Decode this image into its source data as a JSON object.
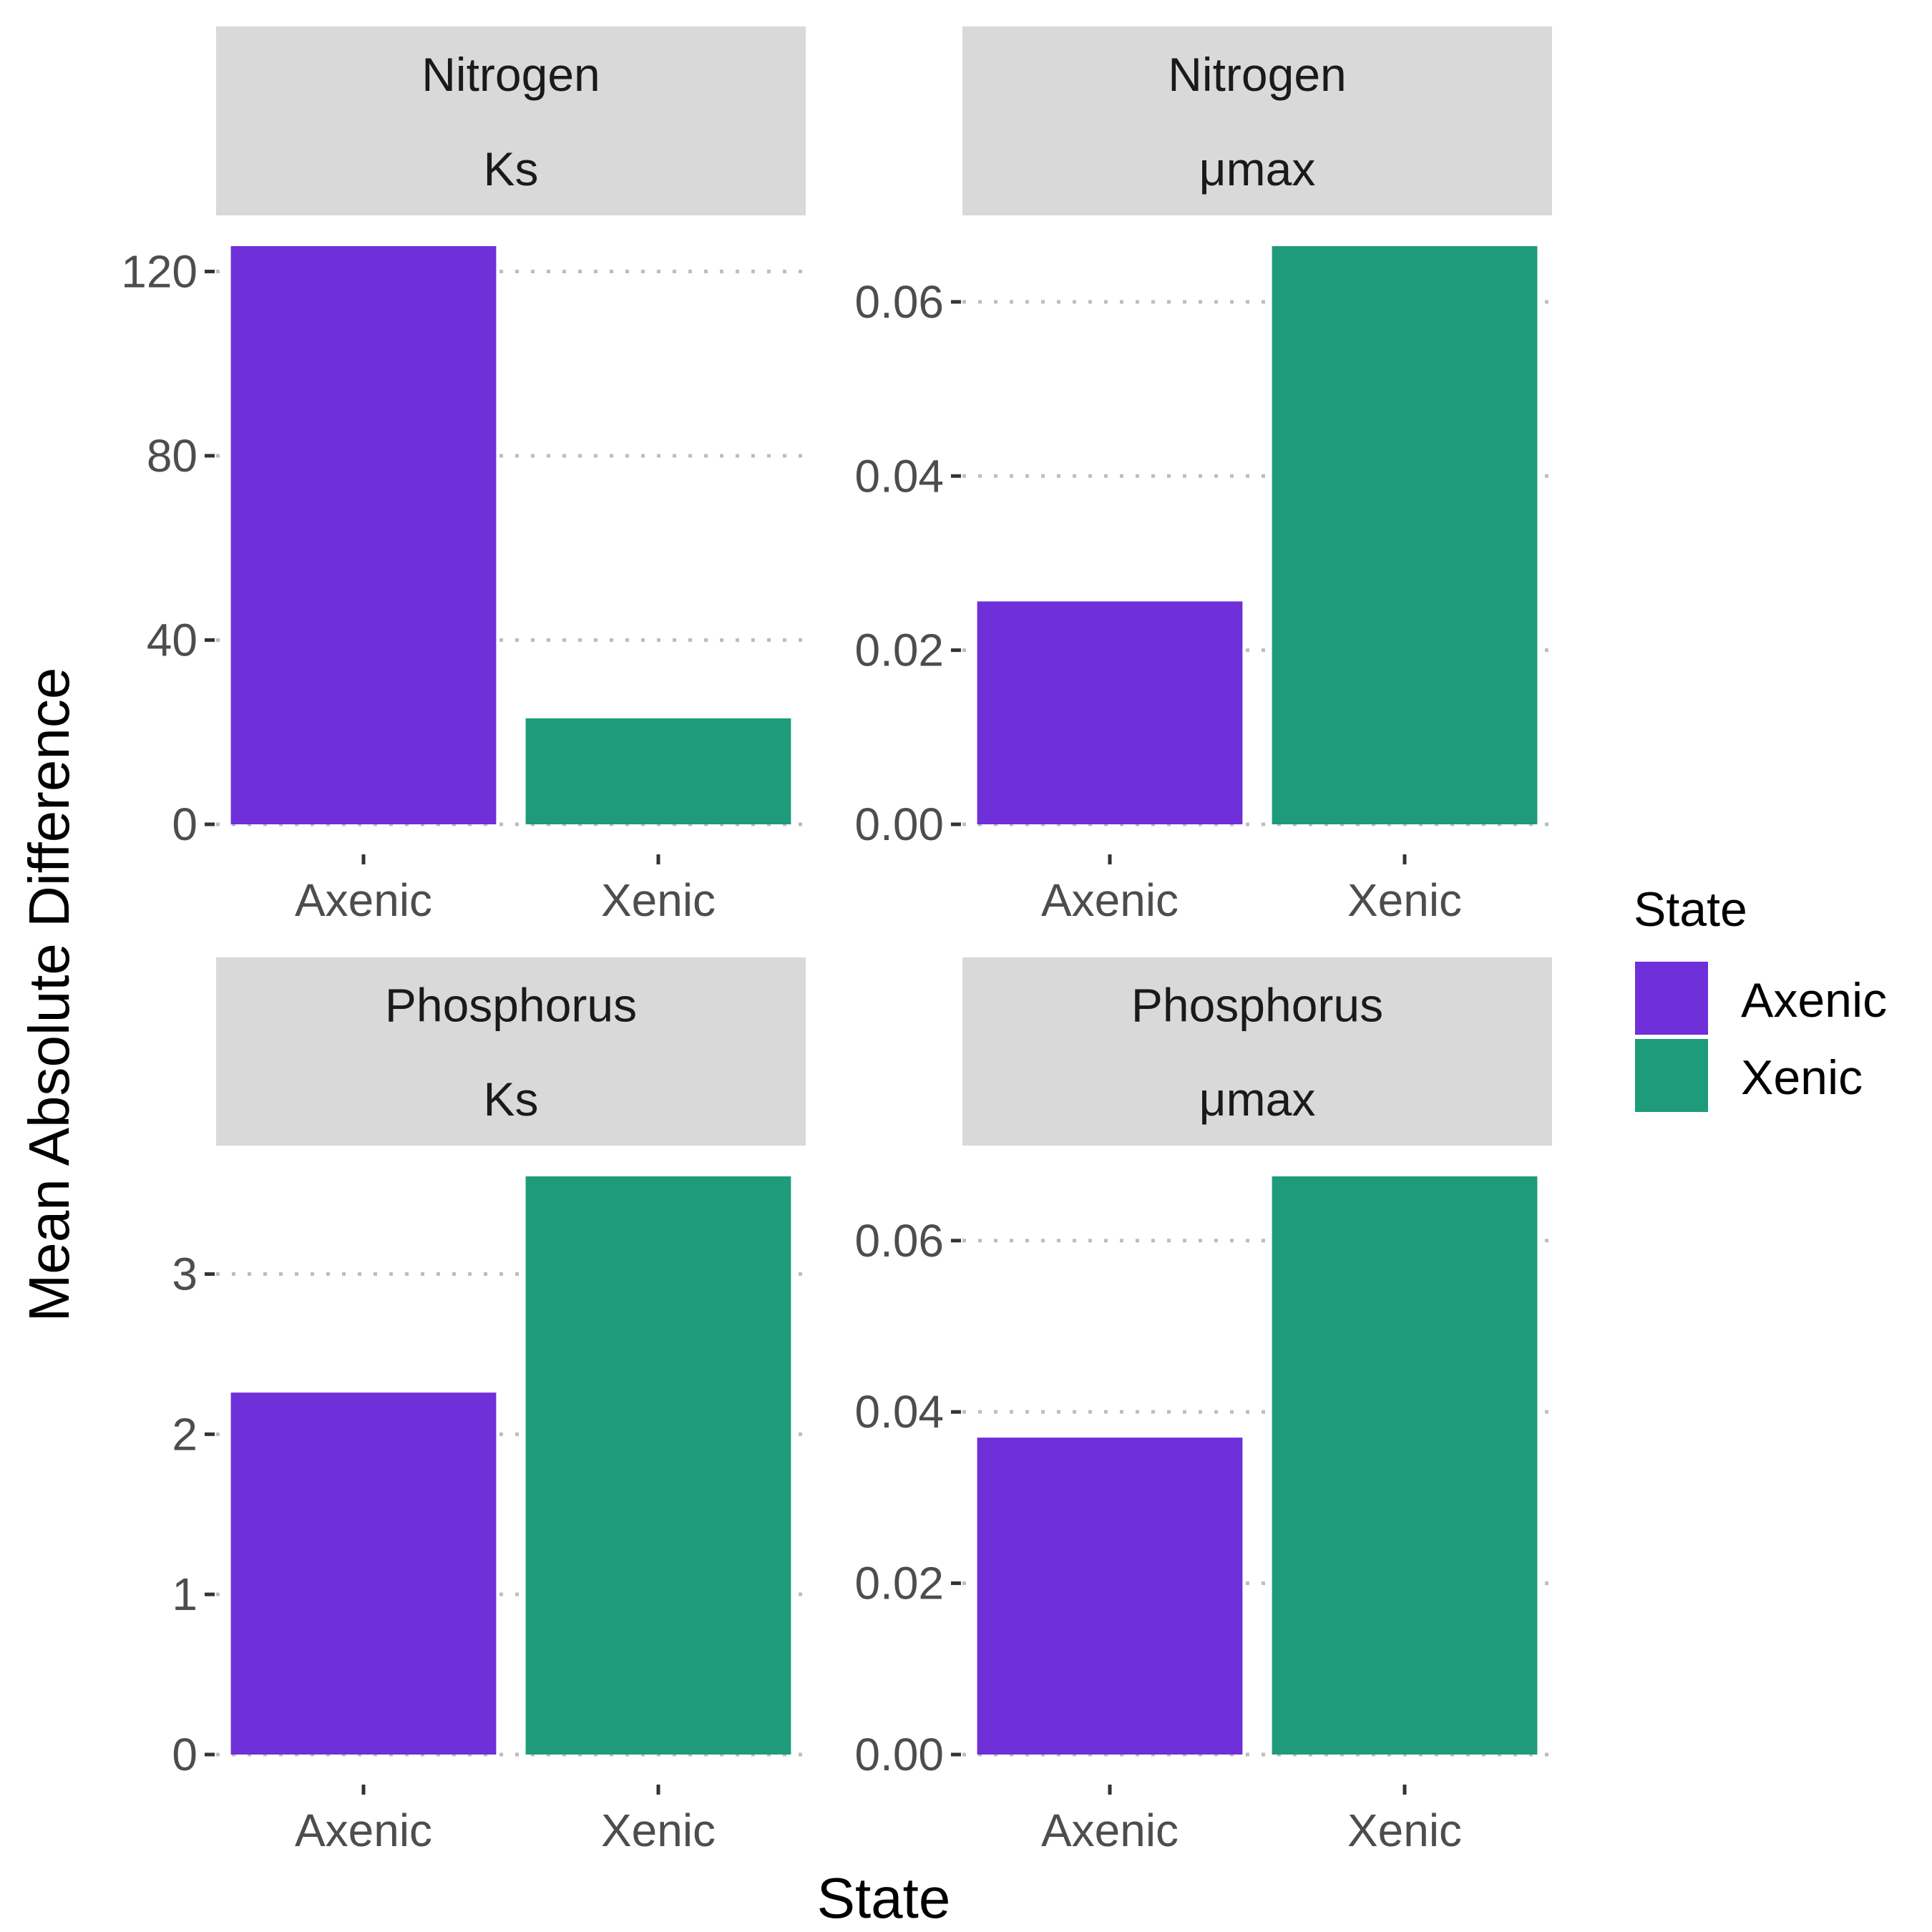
{
  "chart_data": {
    "type": "bar",
    "facet_layout": "2x2 grid",
    "xlabel": "State",
    "ylabel": "Mean Absolute Difference",
    "categories": [
      "Axenic",
      "Xenic"
    ],
    "colors": {
      "Axenic": "#6f2fd9",
      "Xenic": "#1e9b7a"
    },
    "legend": {
      "title": "State",
      "position": "right",
      "entries": [
        "Axenic",
        "Xenic"
      ]
    },
    "grid": "horizontal major gridlines, dotted",
    "panels": [
      {
        "strip": [
          "Nitrogen",
          "Ks"
        ],
        "values": [
          125.5,
          23
        ],
        "ylim": [
          0,
          125.5
        ],
        "yticks": [
          0,
          40,
          80,
          120
        ],
        "ytick_labels": [
          "0",
          "40",
          "80",
          "120"
        ]
      },
      {
        "strip": [
          "Nitrogen",
          "μmax"
        ],
        "values": [
          0.0256,
          0.0664
        ],
        "ylim": [
          0,
          0.0664
        ],
        "yticks": [
          0,
          0.02,
          0.04,
          0.06
        ],
        "ytick_labels": [
          "0.00",
          "0.02",
          "0.04",
          "0.06"
        ]
      },
      {
        "strip": [
          "Phosphorus",
          "Ks"
        ],
        "values": [
          2.26,
          3.61
        ],
        "ylim": [
          0,
          3.61
        ],
        "yticks": [
          0,
          1,
          2,
          3
        ],
        "ytick_labels": [
          "0",
          "1",
          "2",
          "3"
        ]
      },
      {
        "strip": [
          "Phosphorus",
          "μmax"
        ],
        "values": [
          0.037,
          0.0675
        ],
        "ylim": [
          0,
          0.0675
        ],
        "yticks": [
          0,
          0.02,
          0.04,
          0.06
        ],
        "ytick_labels": [
          "0.00",
          "0.02",
          "0.04",
          "0.06"
        ]
      }
    ]
  }
}
